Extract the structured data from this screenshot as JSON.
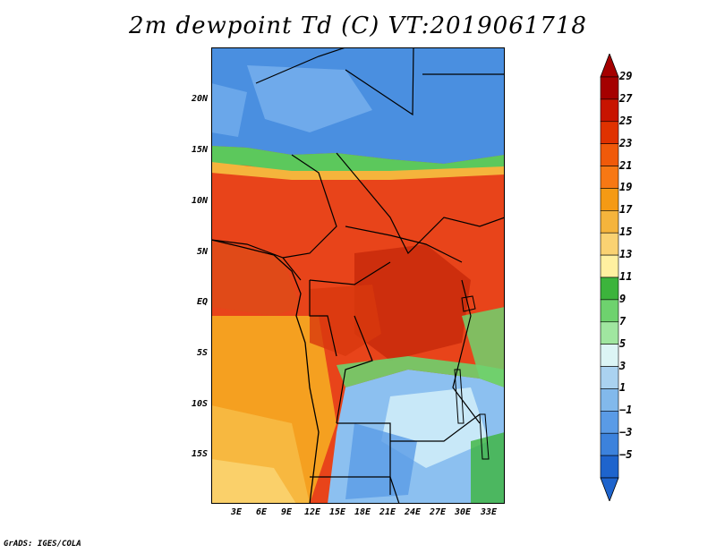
{
  "title": "2m dewpoint Td (C) VT:2019061718",
  "credit": "GrADS: IGES/COLA",
  "lat_labels": [
    "20N",
    "15N",
    "10N",
    "5N",
    "EQ",
    "5S",
    "10S",
    "15S"
  ],
  "lon_labels": [
    "3E",
    "6E",
    "9E",
    "12E",
    "15E",
    "18E",
    "21E",
    "24E",
    "27E",
    "30E",
    "33E"
  ],
  "colorbar": {
    "labels": [
      "29",
      "27",
      "25",
      "23",
      "21",
      "19",
      "17",
      "15",
      "13",
      "11",
      "9",
      "7",
      "5",
      "3",
      "1",
      "−1",
      "−3",
      "−5"
    ],
    "colors": [
      "#a50000",
      "#c81400",
      "#e03200",
      "#f05a0a",
      "#f77814",
      "#f59a14",
      "#f5b43c",
      "#fad272",
      "#fff0a0",
      "#3cb43c",
      "#6ed26e",
      "#a0e6a0",
      "#dcf5f5",
      "#aad2f0",
      "#82b9eb",
      "#5a9be6",
      "#3c82dc",
      "#1e64cd"
    ],
    "top_arrow_color": "#a50000",
    "bottom_arrow_color": "#1e64cd"
  },
  "map_colors": {
    "sahara_blue": "#4a8fe0",
    "sahara_light": "#78b0ee",
    "sahel_green": "#5cc85c",
    "humid_red": "#e8441a",
    "humid_dark": "#c82a0c",
    "ocean_orange": "#f5a020",
    "ocean_south": "#fad06a",
    "south_blue": "#8cc0f0",
    "south_light": "#c8e8f8"
  }
}
